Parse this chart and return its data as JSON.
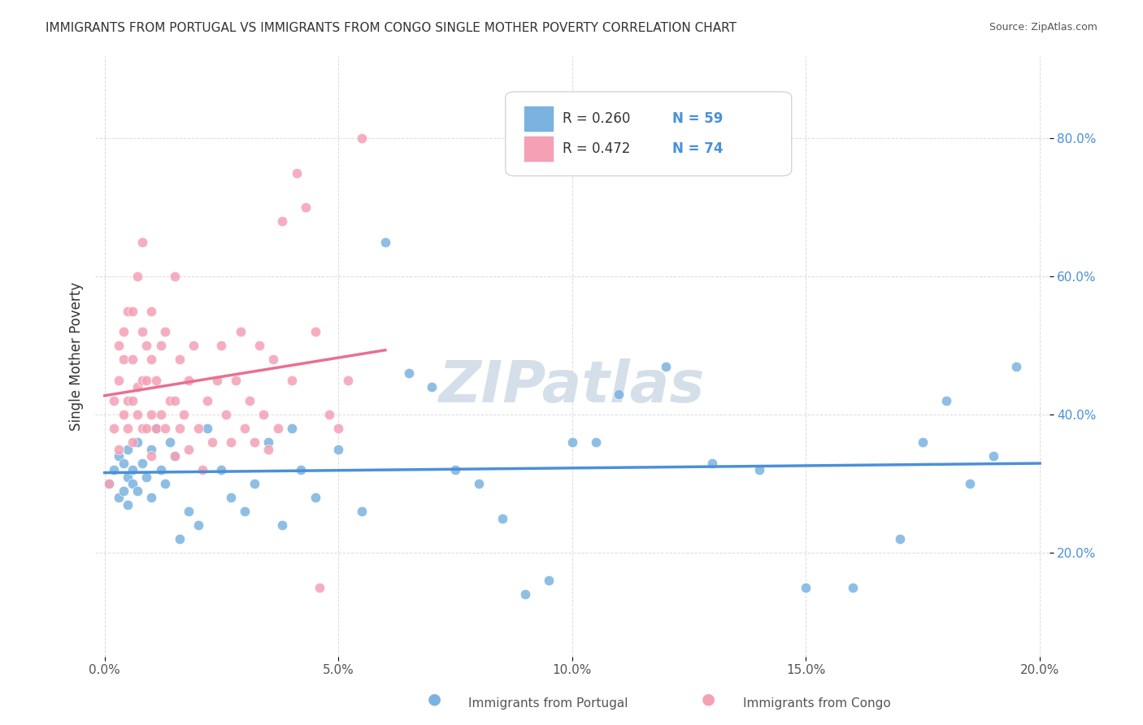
{
  "title": "IMMIGRANTS FROM PORTUGAL VS IMMIGRANTS FROM CONGO SINGLE MOTHER POVERTY CORRELATION CHART",
  "source": "Source: ZipAtlas.com",
  "xlabel": "",
  "ylabel": "Single Mother Poverty",
  "legend_label_1": "Immigrants from Portugal",
  "legend_label_2": "Immigrants from Congo",
  "R1": 0.26,
  "N1": 59,
  "R2": 0.472,
  "N2": 74,
  "color1": "#7ab3e0",
  "color2": "#f4a0b5",
  "line1_color": "#4a90d9",
  "line2_color": "#e87090",
  "trendline1_color": "#c8d8e8",
  "watermark_color": "#d0dce8",
  "xlim": [
    0.0,
    0.2
  ],
  "ylim": [
    0.0,
    0.9
  ],
  "xtick_labels": [
    "0.0%",
    "5.0%",
    "10.0%",
    "15.0%",
    "20.0%"
  ],
  "xtick_values": [
    0.0,
    0.05,
    0.1,
    0.15,
    0.2
  ],
  "ytick_labels": [
    "20.0%",
    "40.0%",
    "60.0%",
    "80.0%"
  ],
  "ytick_values": [
    0.2,
    0.4,
    0.6,
    0.8
  ],
  "portugal_x": [
    0.001,
    0.002,
    0.003,
    0.003,
    0.004,
    0.004,
    0.005,
    0.005,
    0.005,
    0.006,
    0.006,
    0.007,
    0.007,
    0.008,
    0.009,
    0.01,
    0.01,
    0.011,
    0.012,
    0.013,
    0.014,
    0.015,
    0.016,
    0.018,
    0.02,
    0.022,
    0.025,
    0.027,
    0.03,
    0.032,
    0.035,
    0.038,
    0.04,
    0.042,
    0.045,
    0.05,
    0.055,
    0.06,
    0.065,
    0.07,
    0.075,
    0.08,
    0.085,
    0.09,
    0.095,
    0.1,
    0.105,
    0.11,
    0.12,
    0.13,
    0.14,
    0.15,
    0.16,
    0.17,
    0.175,
    0.18,
    0.185,
    0.19,
    0.195
  ],
  "portugal_y": [
    0.3,
    0.32,
    0.28,
    0.34,
    0.29,
    0.33,
    0.31,
    0.35,
    0.27,
    0.3,
    0.32,
    0.29,
    0.36,
    0.33,
    0.31,
    0.35,
    0.28,
    0.38,
    0.32,
    0.3,
    0.36,
    0.34,
    0.22,
    0.26,
    0.24,
    0.38,
    0.32,
    0.28,
    0.26,
    0.3,
    0.36,
    0.24,
    0.38,
    0.32,
    0.28,
    0.35,
    0.26,
    0.65,
    0.46,
    0.44,
    0.32,
    0.3,
    0.25,
    0.14,
    0.16,
    0.36,
    0.36,
    0.43,
    0.47,
    0.33,
    0.32,
    0.15,
    0.15,
    0.22,
    0.36,
    0.42,
    0.3,
    0.34,
    0.47
  ],
  "congo_x": [
    0.001,
    0.002,
    0.002,
    0.003,
    0.003,
    0.003,
    0.004,
    0.004,
    0.004,
    0.005,
    0.005,
    0.005,
    0.006,
    0.006,
    0.006,
    0.006,
    0.007,
    0.007,
    0.007,
    0.008,
    0.008,
    0.008,
    0.008,
    0.009,
    0.009,
    0.009,
    0.01,
    0.01,
    0.01,
    0.01,
    0.011,
    0.011,
    0.012,
    0.012,
    0.013,
    0.013,
    0.014,
    0.015,
    0.015,
    0.015,
    0.016,
    0.016,
    0.017,
    0.018,
    0.018,
    0.019,
    0.02,
    0.021,
    0.022,
    0.023,
    0.024,
    0.025,
    0.026,
    0.027,
    0.028,
    0.029,
    0.03,
    0.031,
    0.032,
    0.033,
    0.034,
    0.035,
    0.036,
    0.037,
    0.038,
    0.04,
    0.041,
    0.043,
    0.045,
    0.046,
    0.048,
    0.05,
    0.052,
    0.055
  ],
  "congo_y": [
    0.3,
    0.38,
    0.42,
    0.35,
    0.45,
    0.5,
    0.4,
    0.48,
    0.52,
    0.38,
    0.42,
    0.55,
    0.36,
    0.42,
    0.48,
    0.55,
    0.4,
    0.44,
    0.6,
    0.38,
    0.45,
    0.52,
    0.65,
    0.38,
    0.45,
    0.5,
    0.34,
    0.4,
    0.48,
    0.55,
    0.38,
    0.45,
    0.4,
    0.5,
    0.38,
    0.52,
    0.42,
    0.34,
    0.42,
    0.6,
    0.38,
    0.48,
    0.4,
    0.35,
    0.45,
    0.5,
    0.38,
    0.32,
    0.42,
    0.36,
    0.45,
    0.5,
    0.4,
    0.36,
    0.45,
    0.52,
    0.38,
    0.42,
    0.36,
    0.5,
    0.4,
    0.35,
    0.48,
    0.38,
    0.68,
    0.45,
    0.75,
    0.7,
    0.52,
    0.15,
    0.4,
    0.38,
    0.45,
    0.8
  ]
}
